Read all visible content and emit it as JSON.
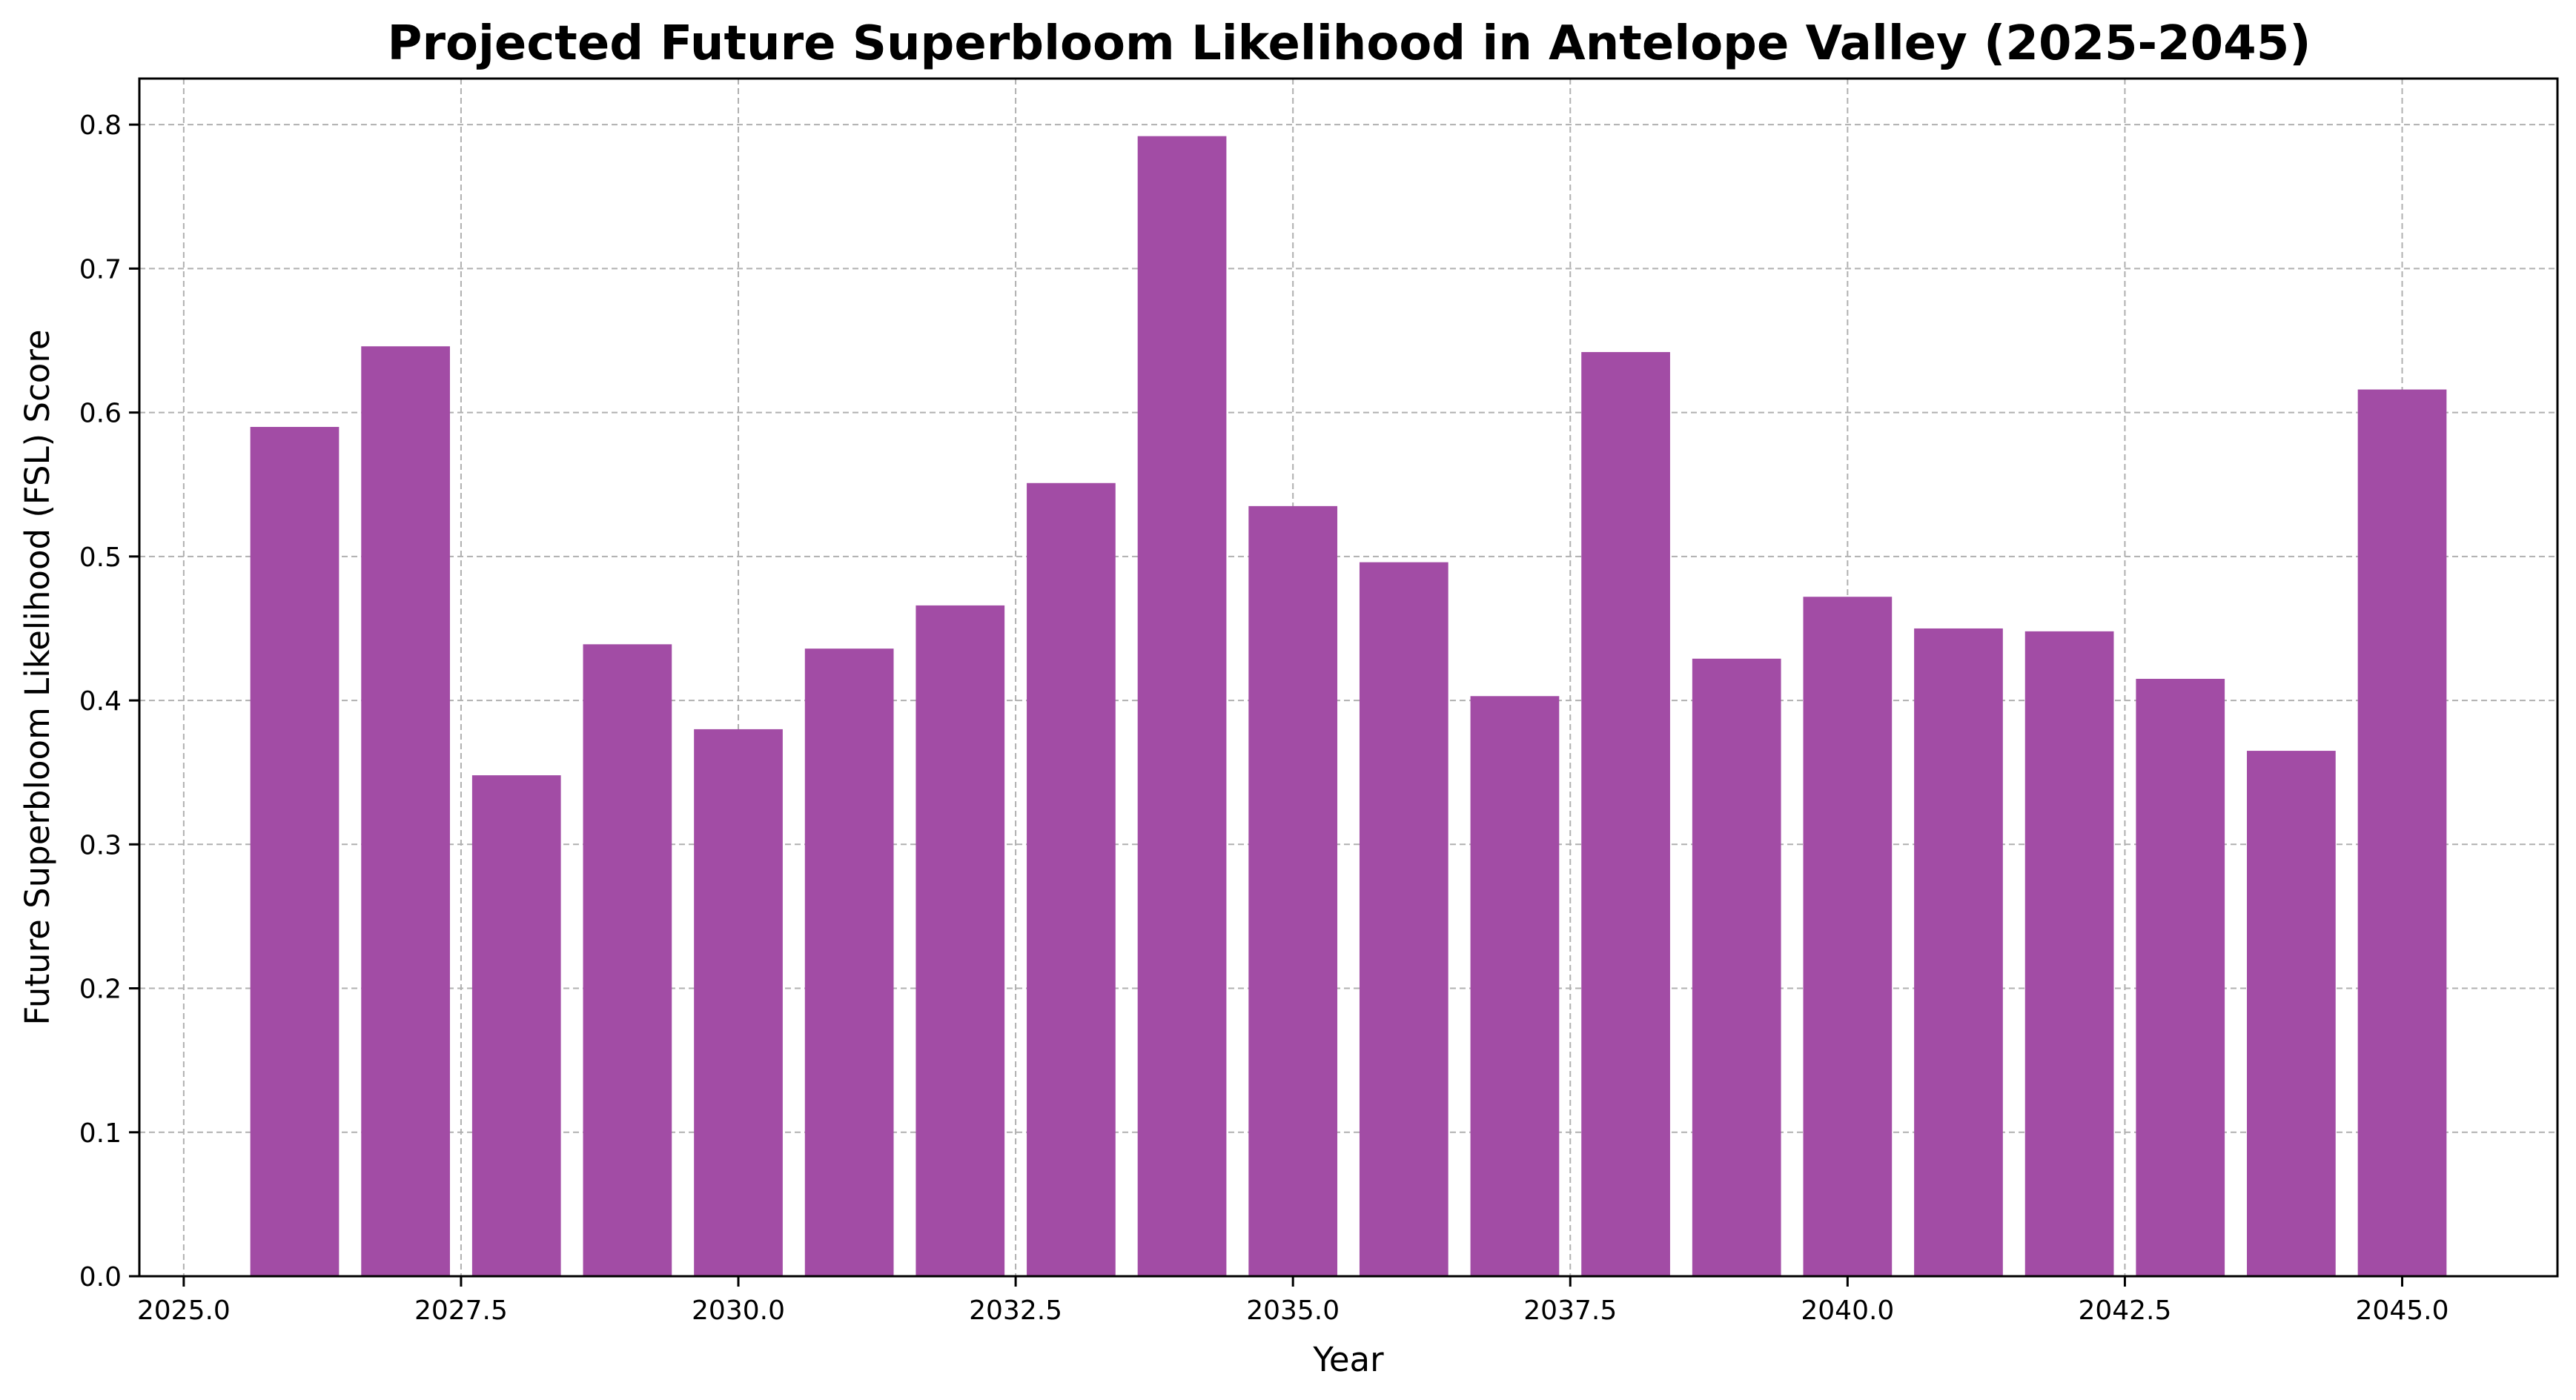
{
  "chart_data": {
    "type": "bar",
    "title": "Projected Future Superbloom Likelihood in Antelope Valley (2025-2045)",
    "xlabel": "Year",
    "ylabel": "Future Superbloom Likelihood (FSL) Score",
    "x": [
      2026,
      2027,
      2028,
      2029,
      2030,
      2031,
      2032,
      2033,
      2034,
      2035,
      2036,
      2037,
      2038,
      2039,
      2040,
      2041,
      2042,
      2043,
      2044,
      2045
    ],
    "values": [
      0.59,
      0.646,
      0.348,
      0.439,
      0.38,
      0.436,
      0.466,
      0.551,
      0.792,
      0.535,
      0.496,
      0.403,
      0.642,
      0.429,
      0.472,
      0.45,
      0.448,
      0.415,
      0.365,
      0.616
    ],
    "bar_width": 0.8,
    "xlim": [
      2024.6,
      2046.4
    ],
    "ylim": [
      0.0,
      0.832
    ],
    "xticks": [
      2025.0,
      2027.5,
      2030.0,
      2032.5,
      2035.0,
      2037.5,
      2040.0,
      2042.5,
      2045.0
    ],
    "xtick_labels": [
      "2025.0",
      "2027.5",
      "2030.0",
      "2032.5",
      "2035.0",
      "2037.5",
      "2040.0",
      "2042.5",
      "2045.0"
    ],
    "yticks": [
      0.0,
      0.1,
      0.2,
      0.3,
      0.4,
      0.5,
      0.6,
      0.7,
      0.8
    ],
    "ytick_labels": [
      "0.0",
      "0.1",
      "0.2",
      "0.3",
      "0.4",
      "0.5",
      "0.6",
      "0.7",
      "0.8"
    ],
    "grid": true,
    "colors": {
      "bar": "#a24ca5",
      "grid": "#b0b0b0",
      "axis": "#000000"
    }
  }
}
